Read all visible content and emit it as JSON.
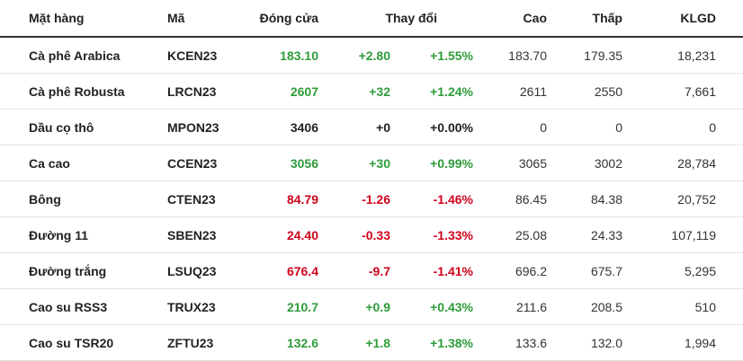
{
  "table": {
    "headers": {
      "name": "Mặt hàng",
      "code": "Mã",
      "close": "Đóng cửa",
      "change": "Thay đổi",
      "high": "Cao",
      "low": "Thấp",
      "volume": "KLGD"
    },
    "colors": {
      "up": "#2e9c3a",
      "down": "#d0021b",
      "flat": "#222222"
    },
    "rows": [
      {
        "name": "Cà phê Arabica",
        "code": "KCEN23",
        "close": "183.10",
        "change": "+2.80",
        "pct": "+1.55%",
        "high": "183.70",
        "low": "179.35",
        "volume": "18,231",
        "trend": "up"
      },
      {
        "name": "Cà phê Robusta",
        "code": "LRCN23",
        "close": "2607",
        "change": "+32",
        "pct": "+1.24%",
        "high": "2611",
        "low": "2550",
        "volume": "7,661",
        "trend": "up"
      },
      {
        "name": "Dầu cọ thô",
        "code": "MPON23",
        "close": "3406",
        "change": "+0",
        "pct": "+0.00%",
        "high": "0",
        "low": "0",
        "volume": "0",
        "trend": "flat"
      },
      {
        "name": "Ca cao",
        "code": "CCEN23",
        "close": "3056",
        "change": "+30",
        "pct": "+0.99%",
        "high": "3065",
        "low": "3002",
        "volume": "28,784",
        "trend": "up"
      },
      {
        "name": "Bông",
        "code": "CTEN23",
        "close": "84.79",
        "change": "-1.26",
        "pct": "-1.46%",
        "high": "86.45",
        "low": "84.38",
        "volume": "20,752",
        "trend": "down"
      },
      {
        "name": "Đường 11",
        "code": "SBEN23",
        "close": "24.40",
        "change": "-0.33",
        "pct": "-1.33%",
        "high": "25.08",
        "low": "24.33",
        "volume": "107,119",
        "trend": "down"
      },
      {
        "name": "Đường trắng",
        "code": "LSUQ23",
        "close": "676.4",
        "change": "-9.7",
        "pct": "-1.41%",
        "high": "696.2",
        "low": "675.7",
        "volume": "5,295",
        "trend": "down"
      },
      {
        "name": "Cao su RSS3",
        "code": "TRUX23",
        "close": "210.7",
        "change": "+0.9",
        "pct": "+0.43%",
        "high": "211.6",
        "low": "208.5",
        "volume": "510",
        "trend": "up"
      },
      {
        "name": "Cao su TSR20",
        "code": "ZFTU23",
        "close": "132.6",
        "change": "+1.8",
        "pct": "+1.38%",
        "high": "133.6",
        "low": "132.0",
        "volume": "1,994",
        "trend": "up"
      }
    ]
  }
}
